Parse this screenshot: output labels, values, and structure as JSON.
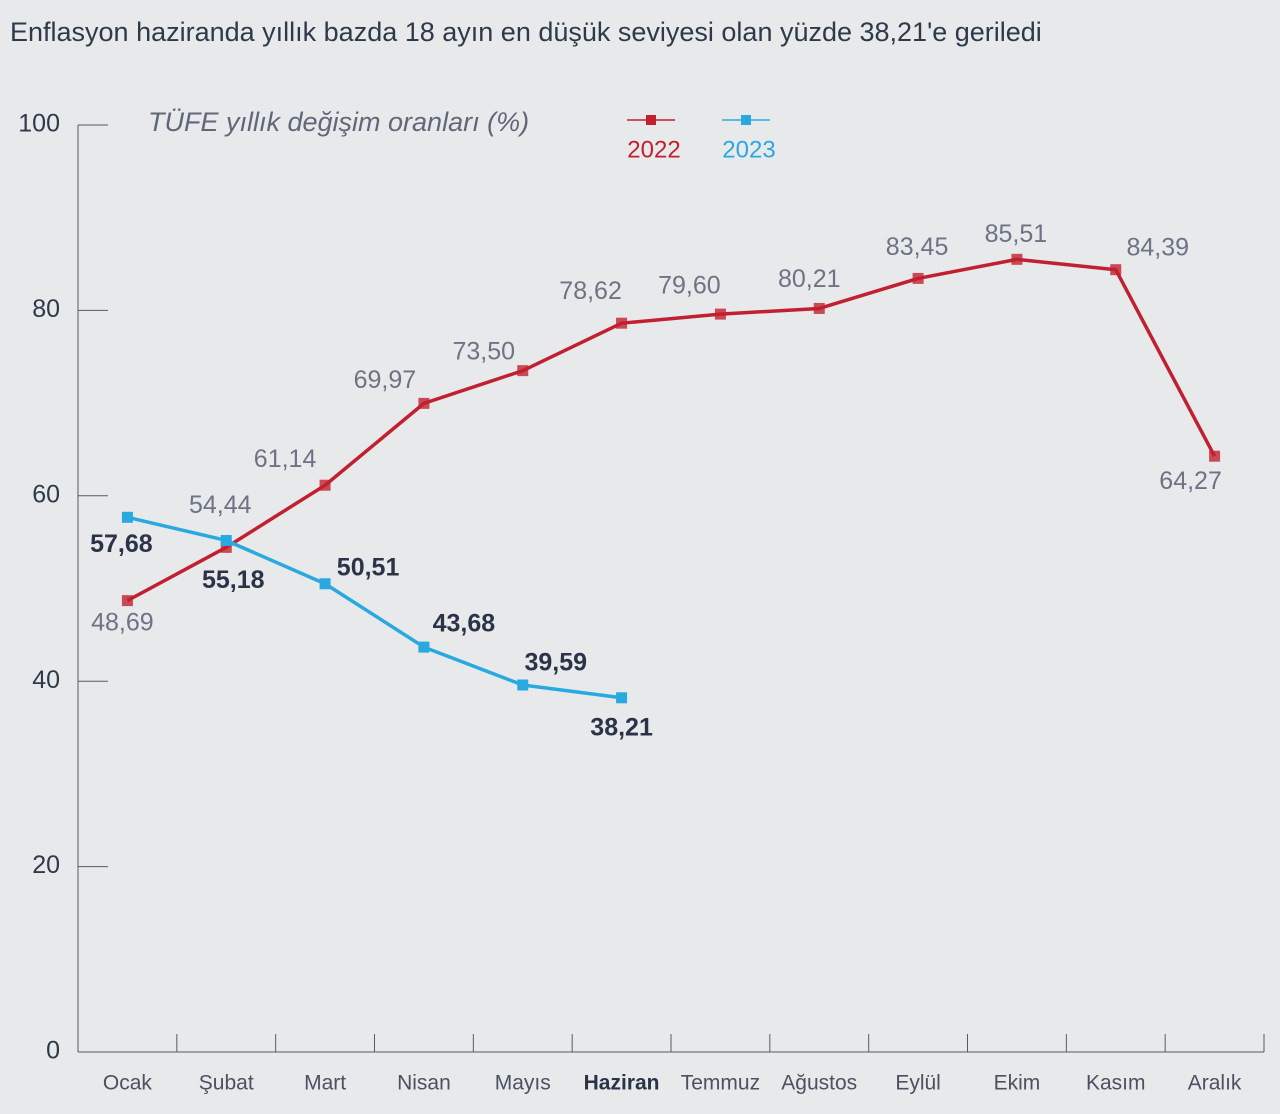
{
  "chart_data": {
    "type": "line",
    "title": "Enflasyon haziranda yıllık bazda 18 ayın en düşük seviyesi olan yüzde 38,21'e geriledi",
    "subtitle": "TÜFE yıllık değişim oranları (%)",
    "categories": [
      "Ocak",
      "Şubat",
      "Mart",
      "Nisan",
      "Mayıs",
      "Haziran",
      "Temmuz",
      "Ağustos",
      "Eylül",
      "Ekim",
      "Kasım",
      "Aralık"
    ],
    "series": [
      {
        "name": "2022",
        "color": "#c0202f",
        "values": [
          48.69,
          54.44,
          61.14,
          69.97,
          73.5,
          78.62,
          79.6,
          80.21,
          83.45,
          85.51,
          84.39,
          64.27
        ],
        "value_labels": [
          "48,69",
          "54,44",
          "61,14",
          "69,97",
          "73,50",
          "78,62",
          "79,60",
          "80,21",
          "83,45",
          "85,51",
          "84,39",
          "64,27"
        ]
      },
      {
        "name": "2023",
        "color": "#29a9e0",
        "values": [
          57.68,
          55.18,
          50.51,
          43.68,
          39.59,
          38.21,
          null,
          null,
          null,
          null,
          null,
          null
        ],
        "value_labels": [
          "57,68",
          "55,18",
          "50,51",
          "43,68",
          "39,59",
          "38,21",
          null,
          null,
          null,
          null,
          null,
          null
        ]
      }
    ],
    "ylim": [
      0,
      100
    ],
    "yticks": [
      0,
      20,
      40,
      60,
      80,
      100
    ]
  }
}
